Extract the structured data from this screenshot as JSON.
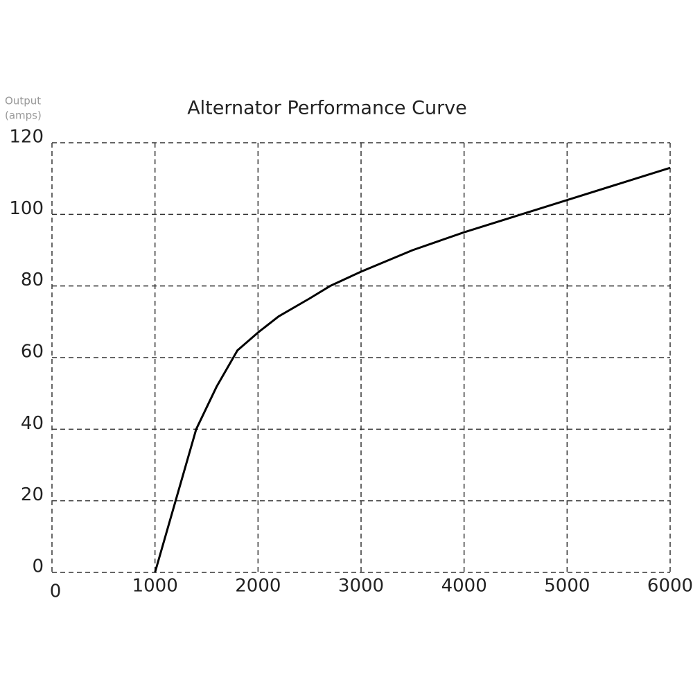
{
  "chart_data": {
    "type": "line",
    "title": "Alternator Performance Curve",
    "ylabel": [
      "Output",
      "(amps)"
    ],
    "x": [
      1000,
      1200,
      1400,
      1600,
      1800,
      2000,
      2200,
      2500,
      2700,
      3000,
      3500,
      4000,
      4500,
      5000,
      5500,
      6000
    ],
    "series": [
      {
        "color": "#000000",
        "values": [
          0,
          20,
          40,
          52,
          62,
          67,
          71.5,
          76.5,
          80,
          84,
          90,
          95,
          99.5,
          104,
          108.5,
          113
        ]
      }
    ],
    "xlim": [
      0,
      6000
    ],
    "xticks": [
      0,
      1000,
      2000,
      3000,
      4000,
      5000,
      6000
    ],
    "ylim": [
      0,
      120
    ],
    "yticks": [
      0,
      20,
      40,
      60,
      80,
      100,
      120
    ],
    "grid": true
  }
}
